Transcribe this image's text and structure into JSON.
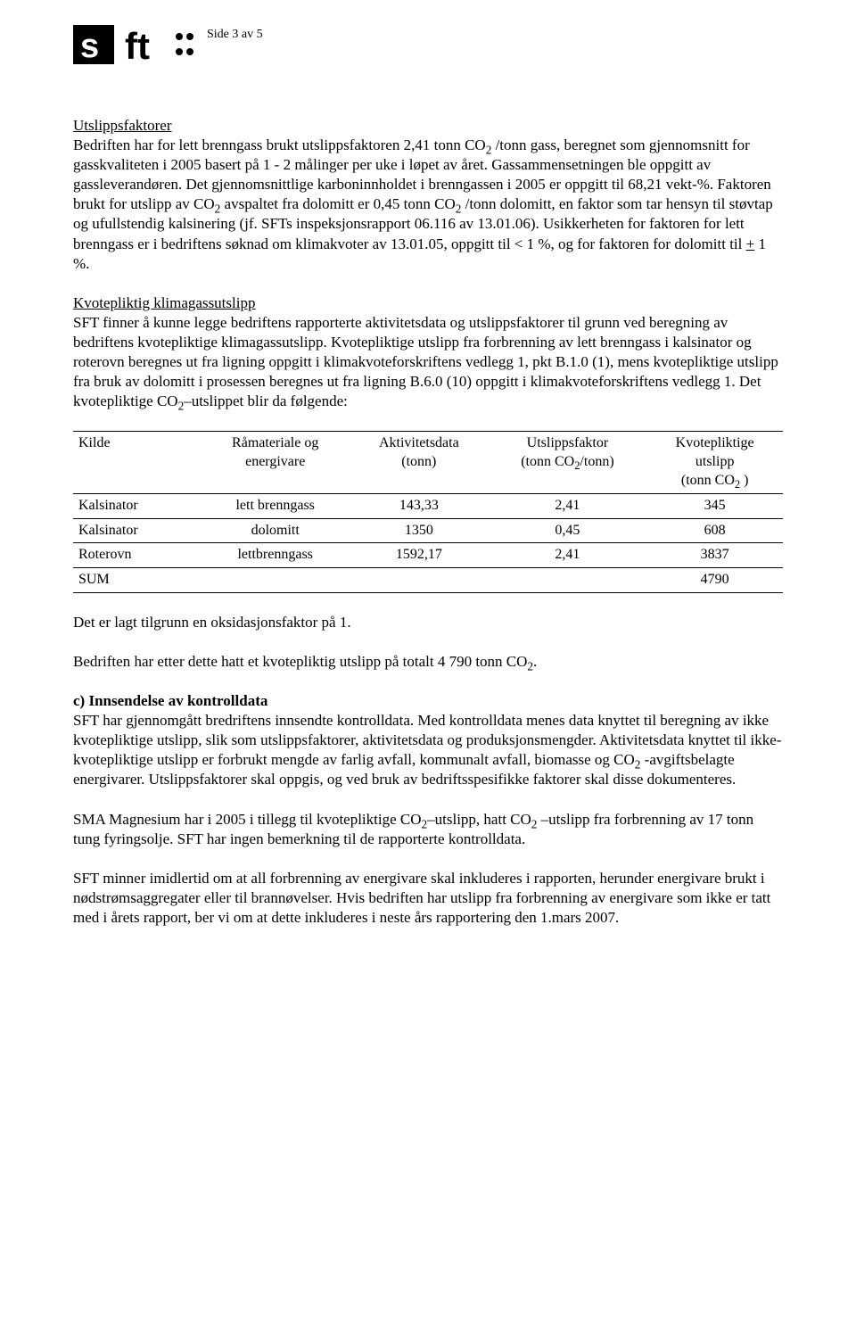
{
  "page_label": "Side 3 av 5",
  "section1": {
    "title": "Utslippsfaktorer",
    "body_html": "Bedriften har for lett brenngass brukt utslippsfaktoren 2,41 tonn CO<span class=\"sub\">2</span> /tonn gass, beregnet som gjennomsnitt for gasskvaliteten i 2005 basert på 1 - 2 målinger per uke i løpet av året. Gassammensetningen ble oppgitt av gassleverandøren. Det gjennomsnittlige karboninnholdet i brenngassen i 2005 er oppgitt til 68,21 vekt-%. Faktoren brukt for utslipp av CO<span class=\"sub\">2</span> avspaltet fra dolomitt er 0,45 tonn CO<span class=\"sub\">2</span> /tonn dolomitt, en faktor som tar hensyn til støvtap og ufullstendig kalsinering (jf. SFTs inspeksjonsrapport 06.116 av 13.01.06). Usikkerheten for faktoren for lett brenngass er i bedriftens søknad om klimakvoter av 13.01.05, oppgitt til &lt; 1 %, og for faktoren for dolomitt til <span class=\"underline\">+</span> 1 %."
  },
  "section2": {
    "title": "Kvotepliktig klimagassutslipp",
    "body_html": "SFT finner å kunne legge bedriftens rapporterte aktivitetsdata og utslippsfaktorer til grunn ved beregning av bedriftens kvotepliktige klimagassutslipp. Kvotepliktige utslipp fra forbrenning av lett brenngass i kalsinator og roterovn beregnes ut fra ligning oppgitt i klimakvoteforskriftens vedlegg 1, pkt B.1.0 (1), mens kvotepliktige utslipp fra bruk av dolomitt i prosessen beregnes ut fra ligning B.6.0 (10) oppgitt i klimakvoteforskriftens vedlegg 1. Det kvotepliktige CO<span class=\"sub\">2</span>–utslippet blir da følgende:"
  },
  "table": {
    "headers": {
      "kilde": "Kilde",
      "ramateriale_html": "Råmateriale og<br>energivare",
      "aktivitet_html": "Aktivitetsdata<br>(tonn)",
      "faktor_html": "Utslippsfaktor<br>(tonn CO<span class=\"sub\">2</span>/tonn)",
      "kvote_html": "Kvotepliktige<br>utslipp<br>(tonn CO<span class=\"sub\">2</span> )"
    },
    "rows": [
      {
        "kilde": "Kalsinator",
        "mat": "lett brenngass",
        "akt": "143,33",
        "fak": "2,41",
        "utslipp": "345"
      },
      {
        "kilde": "Kalsinator",
        "mat": "dolomitt",
        "akt": "1350",
        "fak": "0,45",
        "utslipp": "608"
      },
      {
        "kilde": "Roterovn",
        "mat": "lettbrenngass",
        "akt": "1592,17",
        "fak": "2,41",
        "utslipp": "3837"
      }
    ],
    "sum": {
      "label": "SUM",
      "utslipp": "4790"
    }
  },
  "after_table": {
    "p1": "Det er lagt tilgrunn en oksidasjonsfaktor på 1.",
    "p2_html": "Bedriften har etter dette hatt et kvotepliktig utslipp på totalt 4 790 tonn CO<span class=\"sub\">2</span>."
  },
  "section3": {
    "heading": "c) Innsendelse av kontrolldata",
    "p1_html": "SFT har gjennomgått bredriftens innsendte kontrolldata.  Med kontrolldata menes data knyttet til beregning av ikke kvotepliktige utslipp, slik som utslippsfaktorer, aktivitetsdata og produksjonsmengder.  Aktivitetsdata knyttet til ikke-kvotepliktige utslipp er forbrukt mengde av farlig avfall, kommunalt avfall, biomasse og CO<span class=\"sub\">2</span> -avgiftsbelagte energivarer. Utslippsfaktorer skal oppgis, og ved bruk av bedriftsspesifikke faktorer skal disse dokumenteres.",
    "p2_html": "SMA Magnesium har i 2005 i tillegg til kvotepliktige CO<span class=\"sub\">2</span>–utslipp, hatt CO<span class=\"sub\">2</span> –utslipp fra forbrenning av 17 tonn tung fyringsolje. SFT har ingen bemerkning til de rapporterte kontrolldata.",
    "p3": "SFT minner imidlertid om at all forbrenning av energivare skal inkluderes i rapporten, herunder energivare brukt i nødstrømsaggregater eller til brannøvelser.  Hvis bedriften har utslipp fra forbrenning av energivare som ikke er tatt med i årets rapport, ber vi om at dette inkluderes i neste års rapportering den 1.mars 2007."
  }
}
